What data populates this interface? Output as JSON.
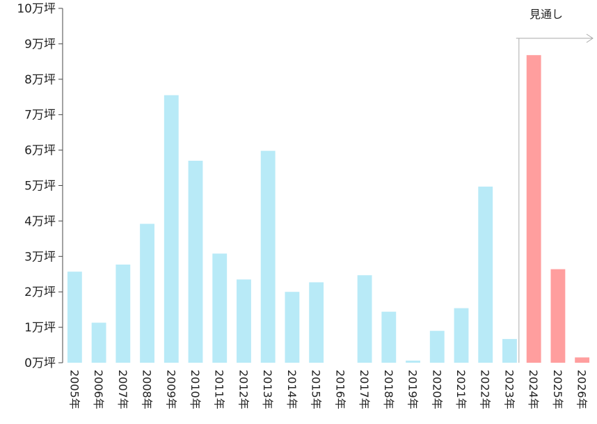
{
  "chart_data": {
    "type": "bar",
    "title": "",
    "xlabel": "",
    "ylabel": "",
    "ylim": [
      0,
      10
    ],
    "y_ticks": [
      "0万坪",
      "1万坪",
      "2万坪",
      "3万坪",
      "4万坪",
      "5万坪",
      "6万坪",
      "7万坪",
      "8万坪",
      "9万坪",
      "10万坪"
    ],
    "categories": [
      "2005年",
      "2006年",
      "2007年",
      "2008年",
      "2009年",
      "2010年",
      "2011年",
      "2012年",
      "2013年",
      "2014年",
      "2015年",
      "2016年",
      "2017年",
      "2018年",
      "2019年",
      "2020年",
      "2021年",
      "2022年",
      "2023年",
      "2024年",
      "2025年",
      "2026年"
    ],
    "values": [
      2.57,
      1.13,
      2.77,
      3.92,
      7.55,
      5.7,
      3.08,
      2.35,
      5.98,
      2.0,
      2.27,
      0.0,
      2.47,
      1.44,
      0.06,
      0.9,
      1.54,
      4.97,
      0.67,
      8.68,
      2.64,
      0.15
    ],
    "series_colors": {
      "actual": "#b8eaf7",
      "forecast": "#ff9e9e"
    },
    "forecast_start_index": 19,
    "annotation": {
      "text": "見通し",
      "arrow_color": "#aaaaaa"
    },
    "grid": false
  }
}
